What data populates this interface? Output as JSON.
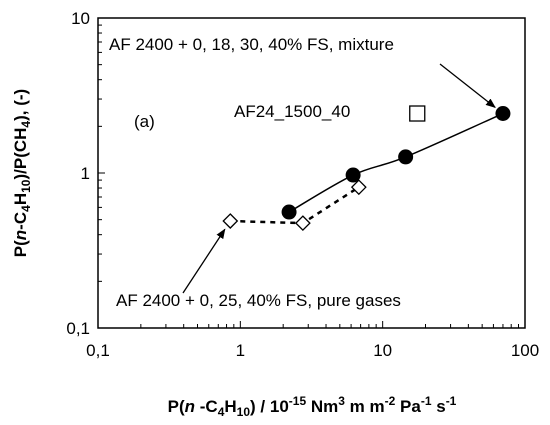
{
  "chart_data": {
    "type": "scatter",
    "title": "",
    "xscale": "log",
    "yscale": "log",
    "xlim": [
      0.1,
      100
    ],
    "ylim": [
      0.1,
      10
    ],
    "grid": false,
    "xticks": [
      {
        "value": 0.1,
        "label": "0,1"
      },
      {
        "value": 1,
        "label": "1"
      },
      {
        "value": 10,
        "label": "10"
      },
      {
        "value": 100,
        "label": "100"
      }
    ],
    "yticks": [
      {
        "value": 0.1,
        "label": "0,1"
      },
      {
        "value": 1,
        "label": "1"
      },
      {
        "value": 10,
        "label": "10"
      }
    ],
    "xlabel": {
      "text": "P(n-C4H10) / 10-15 Nm3 m m-2 Pa-1 s-1",
      "parts": {
        "p1": "P(",
        "n": "n",
        "p2": " -C",
        "s4": "4",
        "H": "H",
        "s10": "10",
        "p3": ") / 10",
        "e15": "-15",
        "p4": " Nm",
        "e3": "3",
        "p5": " m m",
        "em2": "-2",
        "p6": " Pa",
        "em1a": "-1",
        "p7": " s",
        "em1b": "-1"
      }
    },
    "ylabel": {
      "text": "P(n-C4H10)/P(CH4), (-)",
      "parts": {
        "p1": "P(",
        "n": "n",
        "p2": "-C",
        "s4": "4",
        "H": "H",
        "s10": "10",
        "p3": ")/P(CH",
        "s4b": "4",
        "p4": "), (-)"
      }
    },
    "series": [
      {
        "marker": "filled-circle",
        "line": "solid",
        "color": "#000000",
        "points": [
          {
            "x": 2.2,
            "y": 0.56
          },
          {
            "x": 6.2,
            "y": 0.97
          },
          {
            "x": 14.5,
            "y": 1.27
          },
          {
            "x": 70,
            "y": 2.42
          }
        ]
      },
      {
        "marker": "open-diamond",
        "line": "dashed",
        "color": "#000000",
        "points": [
          {
            "x": 0.85,
            "y": 0.49
          },
          {
            "x": 2.75,
            "y": 0.475
          },
          {
            "x": 6.8,
            "y": 0.81
          }
        ]
      },
      {
        "marker": "open-square",
        "line": "none",
        "color": "#000000",
        "points": [
          {
            "x": 17.5,
            "y": 2.42
          }
        ]
      }
    ],
    "annotations": [
      {
        "id": "mixture",
        "text": "AF 2400 + 0, 18, 30, 40% FS, mixture",
        "arrow_to": {
          "x": 70,
          "y": 2.42
        }
      },
      {
        "id": "pure",
        "text": "AF 2400 + 0, 25, 40% FS, pure gases",
        "arrow_to": {
          "x": 0.85,
          "y": 0.49
        }
      },
      {
        "id": "af24",
        "text": "AF24_1500_40"
      },
      {
        "id": "panel",
        "text": "(a)"
      }
    ]
  }
}
